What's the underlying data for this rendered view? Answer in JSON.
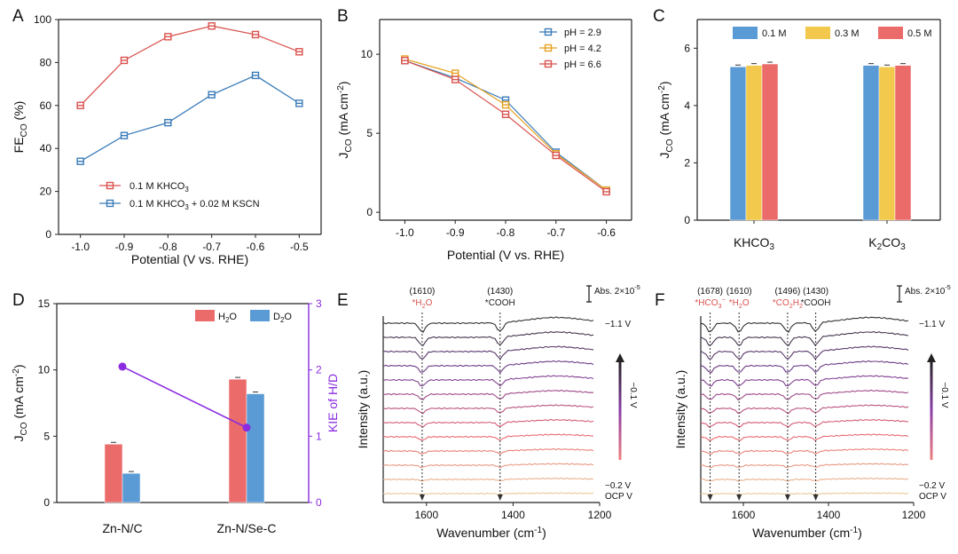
{
  "chart_data": [
    {
      "panel": "A",
      "type": "line",
      "xlabel": "Potential (V vs. RHE)",
      "ylabel": "FE_CO (%)",
      "x": [
        -1.0,
        -0.9,
        -0.8,
        -0.7,
        -0.6,
        -0.5
      ],
      "x_ticks": [
        "-1.0",
        "-0.9",
        "-0.8",
        "-0.7",
        "-0.6",
        "-0.5"
      ],
      "y_ticks": [
        "0",
        "20",
        "40",
        "60",
        "80",
        "100"
      ],
      "xlim": [
        -1.05,
        -0.45
      ],
      "ylim": [
        0,
        100
      ],
      "series": [
        {
          "name": "0.1 M KHCO3",
          "color": "#d9534f",
          "values": [
            60,
            81,
            92,
            97,
            93,
            85
          ]
        },
        {
          "name": "0.1 M KHCO3 + 0.02 M KSCN",
          "color": "#3a7cb8",
          "values": [
            34,
            46,
            52,
            65,
            74,
            61
          ]
        }
      ],
      "legend": "bottom-center"
    },
    {
      "panel": "B",
      "type": "line",
      "xlabel": "Potential (V vs. RHE)",
      "ylabel": "J_CO (mA cm^-2)",
      "x": [
        -1.0,
        -0.9,
        -0.8,
        -0.7,
        -0.6
      ],
      "x_ticks": [
        "-1.0",
        "-0.9",
        "-0.8",
        "-0.7",
        "-0.6"
      ],
      "y_ticks": [
        "0",
        "5",
        "10"
      ],
      "xlim": [
        -1.05,
        -0.55
      ],
      "ylim": [
        -0.5,
        12.2
      ],
      "series": [
        {
          "name": "pH = 2.9",
          "color": "#3a7cb8",
          "values": [
            9.6,
            8.5,
            7.1,
            3.8,
            1.4
          ]
        },
        {
          "name": "pH = 4.2",
          "color": "#e6a020",
          "values": [
            9.7,
            8.8,
            6.8,
            3.7,
            1.4
          ]
        },
        {
          "name": "pH = 6.6",
          "color": "#d9534f",
          "values": [
            9.6,
            8.4,
            6.2,
            3.6,
            1.3
          ]
        }
      ],
      "legend": "top-right"
    },
    {
      "panel": "C",
      "type": "bar",
      "ylabel": "J_CO (mA cm^-2)",
      "categories": [
        "KHCO3",
        "K2CO3"
      ],
      "y_ticks": [
        "0",
        "2",
        "4",
        "6"
      ],
      "ylim": [
        0,
        7
      ],
      "series": [
        {
          "name": "0.1 M",
          "color": "#5b9bd5",
          "values": [
            5.35,
            5.4
          ]
        },
        {
          "name": "0.3 M",
          "color": "#f2c94c",
          "values": [
            5.4,
            5.35
          ]
        },
        {
          "name": "0.5 M",
          "color": "#eb6b6b",
          "values": [
            5.45,
            5.4
          ]
        }
      ],
      "legend": "top"
    },
    {
      "panel": "D",
      "type": "bar",
      "ylabel": "J_CO (mA cm^-2)",
      "ylabel_right": "KIE of H/D",
      "categories": [
        "Zn-N/C",
        "Zn-N/Se-C"
      ],
      "y_ticks": [
        "0",
        "5",
        "10",
        "15"
      ],
      "y_ticks_right": [
        "0",
        "1",
        "2",
        "3"
      ],
      "ylim": [
        0,
        15
      ],
      "ylim_right": [
        0,
        3
      ],
      "series": [
        {
          "name": "H2O",
          "color": "#eb6b6b",
          "values": [
            4.4,
            9.3
          ]
        },
        {
          "name": "D2O",
          "color": "#5b9bd5",
          "values": [
            2.2,
            8.2
          ]
        }
      ],
      "kie": {
        "name": "KIE of H/D",
        "color": "#8a2be2",
        "values": [
          2.05,
          1.13
        ]
      },
      "legend": "top-right"
    },
    {
      "panel": "E",
      "type": "line",
      "xlabel": "Wavenumber (cm^-1)",
      "ylabel": "Intensity (a.u.)",
      "x_ticks": [
        "1600",
        "1400",
        "1200"
      ],
      "xlim": [
        1700,
        1200
      ],
      "scale_bar": "Abs. 2×10^-5",
      "peaks": [
        {
          "position": "(1610)",
          "label": "*H2O",
          "wavenumber": 1610,
          "color": "#d9534f"
        },
        {
          "position": "(1430)",
          "label": "*COOH",
          "wavenumber": 1430,
          "color": "#222222"
        }
      ],
      "trace_labels": {
        "top": "−1.1 V",
        "bottom": "−0.2 V",
        "ocp": "OCP V",
        "arrow": "−0.1 V"
      },
      "trace_count": 13
    },
    {
      "panel": "F",
      "type": "line",
      "xlabel": "Wavenumber (cm^-1)",
      "ylabel": "Intensity (a.u.)",
      "x_ticks": [
        "1600",
        "1400",
        "1200"
      ],
      "xlim": [
        1700,
        1200
      ],
      "scale_bar": "Abs. 2×10^-5",
      "peaks": [
        {
          "position": "(1678)",
          "label": "*HCO3-",
          "wavenumber": 1678,
          "color": "#d9534f"
        },
        {
          "position": "(1610)",
          "label": "*H2O",
          "wavenumber": 1610,
          "color": "#d9534f"
        },
        {
          "position": "(1496)",
          "label": "*CO2H2",
          "wavenumber": 1496,
          "color": "#d9534f"
        },
        {
          "position": "(1430)",
          "label": "*COOH",
          "wavenumber": 1430,
          "color": "#222222"
        }
      ],
      "trace_labels": {
        "top": "−1.1 V",
        "bottom": "−0.2 V",
        "ocp": "OCP V",
        "arrow": "−0.1 V"
      },
      "trace_count": 13
    }
  ]
}
